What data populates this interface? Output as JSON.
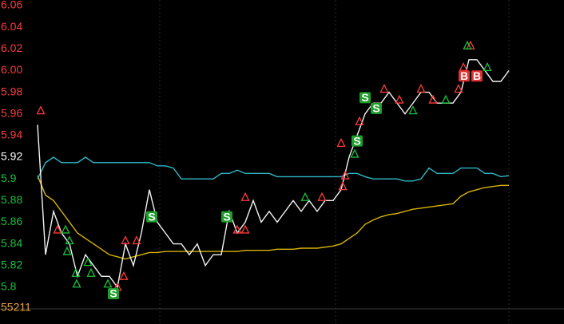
{
  "chart_data": {
    "type": "line",
    "background": "#000000",
    "reference_price": 5.92,
    "up_color": "#ff3b3b",
    "down_color": "#18c23a",
    "flat_color": "#ffffff",
    "volume_label": "55211",
    "volume_label_color": "#e8a33c",
    "xlim": [
      0,
      66
    ],
    "ylim": [
      5.78,
      6.06
    ],
    "yticks": [
      5.8,
      5.82,
      5.84,
      5.86,
      5.88,
      5.9,
      5.92,
      5.94,
      5.96,
      5.98,
      {
        "value": 6.0,
        "label": "6.00"
      },
      6.02,
      6.04,
      6.06
    ],
    "x": [
      0,
      1,
      2,
      3,
      4,
      5,
      6,
      7,
      8,
      9,
      10,
      11,
      12,
      13,
      14,
      15,
      16,
      17,
      18,
      19,
      20,
      21,
      22,
      23,
      24,
      25,
      26,
      27,
      28,
      29,
      30,
      31,
      32,
      33,
      34,
      35,
      36,
      37,
      38,
      39,
      40,
      41,
      42,
      43,
      44,
      45,
      46,
      47,
      48,
      49,
      50,
      51,
      52,
      53,
      54,
      55,
      56,
      57,
      58,
      59
    ],
    "series": [
      {
        "color": "#f2f2f2",
        "values": [
          5.95,
          5.83,
          5.87,
          5.85,
          5.84,
          5.81,
          5.83,
          5.82,
          5.81,
          5.81,
          5.8,
          5.84,
          5.82,
          5.85,
          5.89,
          5.86,
          5.85,
          5.84,
          5.84,
          5.83,
          5.84,
          5.82,
          5.83,
          5.83,
          5.87,
          5.85,
          5.86,
          5.88,
          5.86,
          5.87,
          5.86,
          5.87,
          5.88,
          5.87,
          5.88,
          5.87,
          5.88,
          5.88,
          5.89,
          5.92,
          5.94,
          5.96,
          5.97,
          5.97,
          5.98,
          5.97,
          5.96,
          5.97,
          5.98,
          5.98,
          5.97,
          5.97,
          5.97,
          5.98,
          6.01,
          6.01,
          6.0,
          5.99,
          5.99,
          6.0
        ]
      },
      {
        "color": "#2fb8c8",
        "values": [
          5.9,
          5.915,
          5.92,
          5.915,
          5.915,
          5.915,
          5.92,
          5.915,
          5.915,
          5.915,
          5.915,
          5.915,
          5.915,
          5.915,
          5.915,
          5.912,
          5.912,
          5.91,
          5.9,
          5.9,
          5.9,
          5.9,
          5.9,
          5.905,
          5.905,
          5.908,
          5.905,
          5.905,
          5.905,
          5.905,
          5.902,
          5.902,
          5.902,
          5.902,
          5.902,
          5.902,
          5.902,
          5.902,
          5.902,
          5.905,
          5.905,
          5.902,
          5.9,
          5.9,
          5.9,
          5.9,
          5.898,
          5.898,
          5.9,
          5.91,
          5.905,
          5.905,
          5.905,
          5.91,
          5.91,
          5.91,
          5.905,
          5.905,
          5.902,
          5.903
        ]
      },
      {
        "color": "#d8b400",
        "values": [
          5.903,
          5.885,
          5.88,
          5.87,
          5.86,
          5.85,
          5.845,
          5.84,
          5.835,
          5.83,
          5.828,
          5.826,
          5.828,
          5.83,
          5.832,
          5.832,
          5.833,
          5.833,
          5.833,
          5.833,
          5.833,
          5.833,
          5.833,
          5.833,
          5.833,
          5.833,
          5.834,
          5.834,
          5.834,
          5.834,
          5.835,
          5.835,
          5.835,
          5.836,
          5.836,
          5.836,
          5.837,
          5.838,
          5.84,
          5.845,
          5.85,
          5.858,
          5.862,
          5.865,
          5.867,
          5.868,
          5.87,
          5.872,
          5.873,
          5.874,
          5.875,
          5.876,
          5.877,
          5.884,
          5.888,
          5.89,
          5.892,
          5.893,
          5.894,
          5.894
        ]
      }
    ],
    "signals": [
      {
        "x": 9.5,
        "y": 5.794,
        "label": "S",
        "color": "#1e9e2c"
      },
      {
        "x": 14.3,
        "y": 5.865,
        "label": "S",
        "color": "#1e9e2c"
      },
      {
        "x": 23.7,
        "y": 5.865,
        "label": "S",
        "color": "#1e9e2c"
      },
      {
        "x": 40,
        "y": 5.935,
        "label": "S",
        "color": "#1e9e2c"
      },
      {
        "x": 41,
        "y": 5.975,
        "label": "S",
        "color": "#1e9e2c"
      },
      {
        "x": 42.4,
        "y": 5.965,
        "label": "S",
        "color": "#1e9e2c"
      },
      {
        "x": 53.4,
        "y": 5.995,
        "label": "B",
        "color": "#e0322e"
      },
      {
        "x": 55,
        "y": 5.995,
        "label": "B",
        "color": "#e0322e"
      }
    ],
    "markers": [
      {
        "x": 0.4,
        "y": 5.963,
        "color": "#ff3b3b"
      },
      {
        "x": 2.5,
        "y": 5.853,
        "color": "#ff3b3b"
      },
      {
        "x": 10,
        "y": 5.8,
        "color": "#ff3b3b"
      },
      {
        "x": 10.8,
        "y": 5.81,
        "color": "#ff3b3b"
      },
      {
        "x": 11,
        "y": 5.843,
        "color": "#ff3b3b"
      },
      {
        "x": 12.4,
        "y": 5.843,
        "color": "#ff3b3b"
      },
      {
        "x": 25,
        "y": 5.853,
        "color": "#ff3b3b"
      },
      {
        "x": 26,
        "y": 5.853,
        "color": "#ff3b3b"
      },
      {
        "x": 26,
        "y": 5.883,
        "color": "#ff3b3b"
      },
      {
        "x": 35.6,
        "y": 5.883,
        "color": "#ff3b3b"
      },
      {
        "x": 38.2,
        "y": 5.893,
        "color": "#ff3b3b"
      },
      {
        "x": 38,
        "y": 5.933,
        "color": "#ff3b3b"
      },
      {
        "x": 38.5,
        "y": 5.903,
        "color": "#ff3b3b"
      },
      {
        "x": 40.3,
        "y": 5.953,
        "color": "#ff3b3b"
      },
      {
        "x": 43.4,
        "y": 5.983,
        "color": "#ff3b3b"
      },
      {
        "x": 45.3,
        "y": 5.973,
        "color": "#ff3b3b"
      },
      {
        "x": 48,
        "y": 5.983,
        "color": "#ff3b3b"
      },
      {
        "x": 49.5,
        "y": 5.973,
        "color": "#ff3b3b"
      },
      {
        "x": 52.7,
        "y": 5.983,
        "color": "#ff3b3b"
      },
      {
        "x": 54.2,
        "y": 6.023,
        "color": "#ff3b3b"
      },
      {
        "x": 53.3,
        "y": 6.003,
        "color": "#ff3b3b"
      },
      {
        "x": 3.5,
        "y": 5.853,
        "color": "#18c23a"
      },
      {
        "x": 4,
        "y": 5.843,
        "color": "#18c23a"
      },
      {
        "x": 3.7,
        "y": 5.833,
        "color": "#18c23a"
      },
      {
        "x": 4.8,
        "y": 5.813,
        "color": "#18c23a"
      },
      {
        "x": 4.9,
        "y": 5.803,
        "color": "#18c23a"
      },
      {
        "x": 6.3,
        "y": 5.823,
        "color": "#18c23a"
      },
      {
        "x": 6.7,
        "y": 5.813,
        "color": "#18c23a"
      },
      {
        "x": 8.8,
        "y": 5.803,
        "color": "#18c23a"
      },
      {
        "x": 33.5,
        "y": 5.883,
        "color": "#18c23a"
      },
      {
        "x": 39.7,
        "y": 5.923,
        "color": "#18c23a"
      },
      {
        "x": 47,
        "y": 5.963,
        "color": "#18c23a"
      },
      {
        "x": 51.1,
        "y": 5.973,
        "color": "#18c23a"
      },
      {
        "x": 53.8,
        "y": 6.023,
        "color": "#18c23a"
      },
      {
        "x": 56.3,
        "y": 6.003,
        "color": "#18c23a"
      }
    ]
  }
}
